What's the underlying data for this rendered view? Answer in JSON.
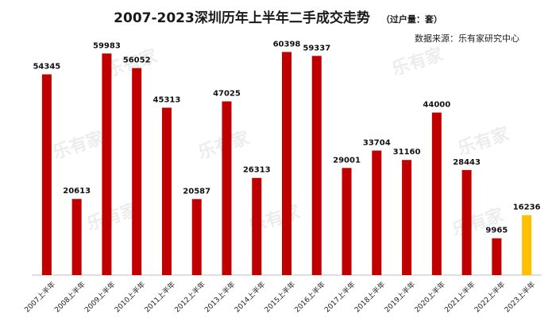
{
  "chart_data": {
    "type": "bar",
    "title": "2007-2023深圳历年上半年二手成交走势",
    "unit_note": "（过户量：套）",
    "source": "数据来源：乐有家研究中心",
    "watermark": "乐有家",
    "categories": [
      "2007上半年",
      "2008上半年",
      "2009上半年",
      "2010上半年",
      "2011上半年",
      "2012上半年",
      "2013上半年",
      "2014上半年",
      "2015上半年",
      "2016上半年",
      "2017上半年",
      "2018上半年",
      "2019上半年",
      "2020上半年",
      "2021上半年",
      "2022上半年",
      "2023上半年"
    ],
    "values": [
      54345,
      20613,
      59983,
      56052,
      45313,
      20587,
      47025,
      26313,
      60398,
      59337,
      29001,
      33704,
      31160,
      44000,
      28443,
      9965,
      16236
    ],
    "ylim": [
      0,
      65000
    ],
    "grid": false,
    "legend": "none",
    "colors": {
      "bar": "#c00000",
      "highlight": "#ffc000",
      "axis": "#bfbfbf"
    },
    "highlight_category": "2023上半年"
  }
}
